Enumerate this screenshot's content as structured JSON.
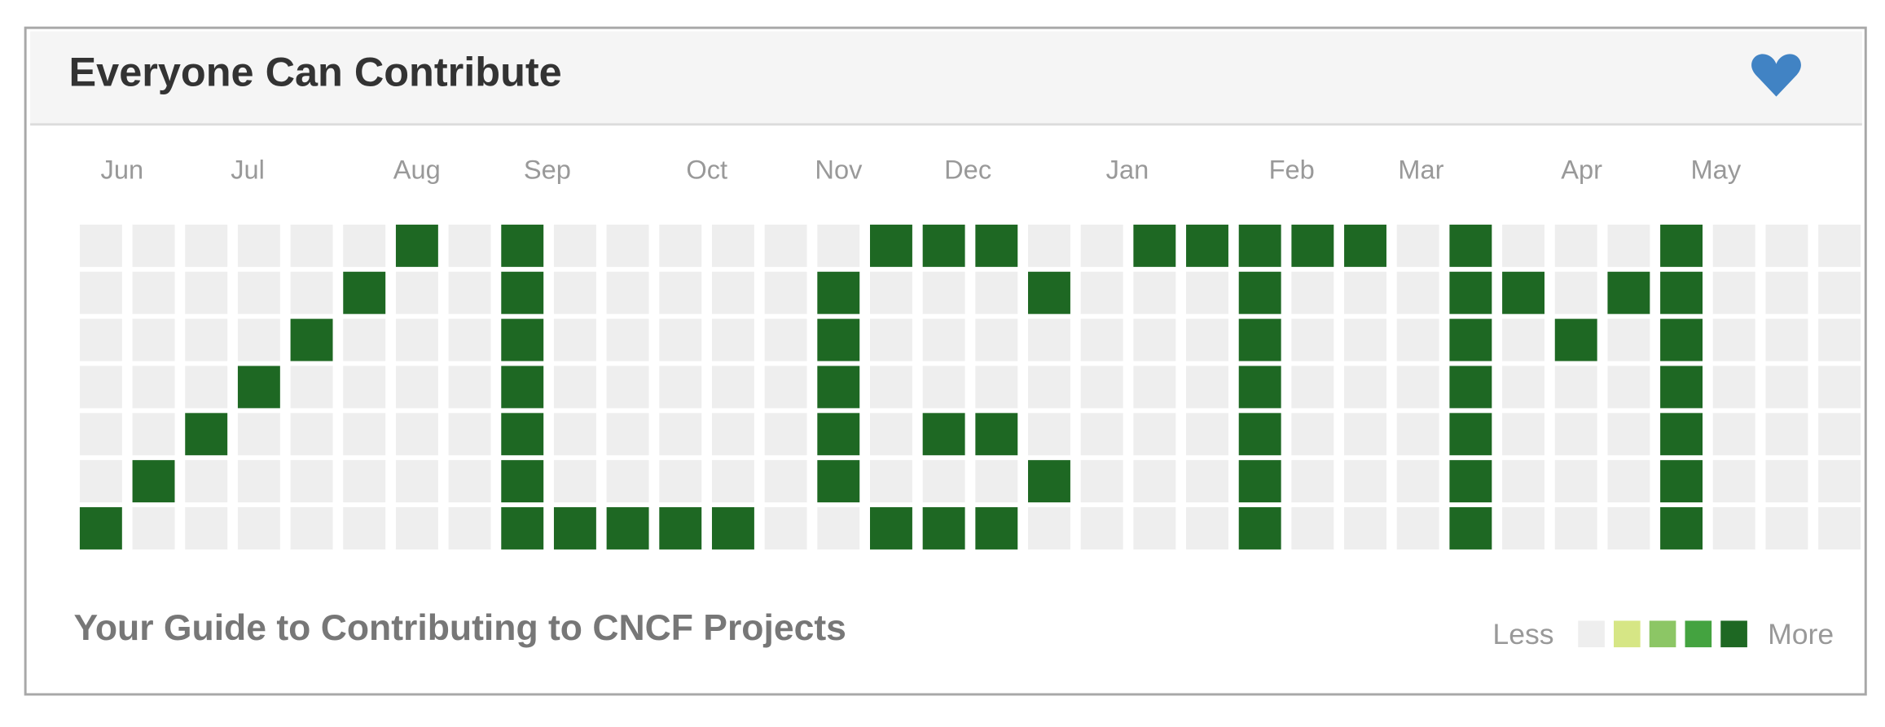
{
  "header": {
    "title": "Everyone Can Contribute"
  },
  "months": [
    "Jun",
    "Jul",
    "Aug",
    "Sep",
    "Oct",
    "Nov",
    "Dec",
    "Jan",
    "Feb",
    "Mar",
    "Apr",
    "May"
  ],
  "weeks": [
    [
      0,
      0,
      0,
      0,
      0,
      0,
      4
    ],
    [
      0,
      0,
      0,
      0,
      0,
      4,
      0
    ],
    [
      0,
      0,
      0,
      0,
      4,
      0,
      0
    ],
    [
      0,
      0,
      0,
      4,
      0,
      0,
      0
    ],
    [
      0,
      0,
      4,
      0,
      0,
      0,
      0
    ],
    [
      0,
      4,
      0,
      0,
      0,
      0,
      0
    ],
    [
      4,
      0,
      0,
      0,
      0,
      0,
      0
    ],
    [
      0,
      0,
      0,
      0,
      0,
      0,
      0
    ],
    [
      4,
      4,
      4,
      4,
      4,
      4,
      4
    ],
    [
      0,
      0,
      0,
      0,
      0,
      0,
      4
    ],
    [
      0,
      0,
      0,
      0,
      0,
      0,
      4
    ],
    [
      0,
      0,
      0,
      0,
      0,
      0,
      4
    ],
    [
      0,
      0,
      0,
      0,
      0,
      0,
      4
    ],
    [
      0,
      0,
      0,
      0,
      0,
      0,
      0
    ],
    [
      0,
      4,
      4,
      4,
      4,
      4,
      0
    ],
    [
      4,
      0,
      0,
      0,
      0,
      0,
      4
    ],
    [
      4,
      0,
      0,
      0,
      4,
      0,
      4
    ],
    [
      4,
      0,
      0,
      0,
      4,
      0,
      4
    ],
    [
      0,
      4,
      0,
      0,
      0,
      4,
      0
    ],
    [
      0,
      0,
      0,
      0,
      0,
      0,
      0
    ],
    [
      4,
      0,
      0,
      0,
      0,
      0,
      0
    ],
    [
      4,
      0,
      0,
      0,
      0,
      0,
      0
    ],
    [
      4,
      4,
      4,
      4,
      4,
      4,
      4
    ],
    [
      4,
      0,
      0,
      0,
      0,
      0,
      0
    ],
    [
      4,
      0,
      0,
      0,
      0,
      0,
      0
    ],
    [
      0,
      0,
      0,
      0,
      0,
      0,
      0
    ],
    [
      4,
      4,
      4,
      4,
      4,
      4,
      4
    ],
    [
      0,
      4,
      0,
      0,
      0,
      0,
      0
    ],
    [
      0,
      0,
      4,
      0,
      0,
      0,
      0
    ],
    [
      0,
      4,
      0,
      0,
      0,
      0,
      0
    ],
    [
      4,
      4,
      4,
      4,
      4,
      4,
      4
    ],
    [
      0,
      0,
      0,
      0,
      0,
      0,
      0
    ],
    [
      0,
      0,
      0,
      0,
      0,
      0,
      0
    ],
    [
      0,
      0,
      0,
      0,
      0,
      0,
      0
    ]
  ],
  "footer": {
    "subtitle": "Your Guide to Contributing to CNCF Projects"
  },
  "legend": {
    "less": "Less",
    "more": "More",
    "colors": [
      "#eeeeee",
      "#d6e685",
      "#8cc665",
      "#44a340",
      "#1e6823"
    ]
  }
}
